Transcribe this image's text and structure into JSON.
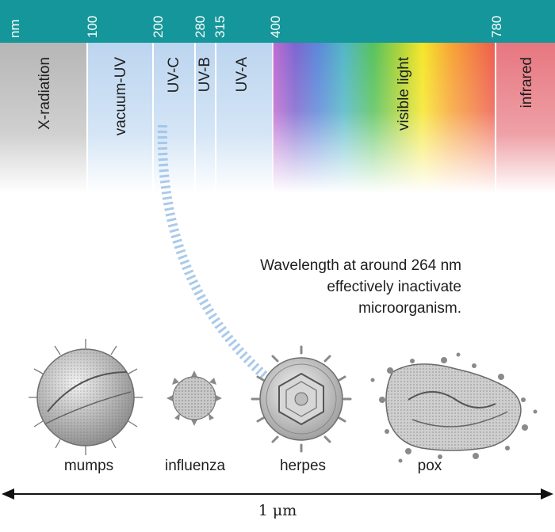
{
  "header": {
    "unit": "nm",
    "ticks": [
      "100",
      "200",
      "280",
      "315",
      "400",
      "780"
    ]
  },
  "bands": {
    "xray": "X-radiation",
    "vacuum_uv": "vacuum-UV",
    "uvc": "UV-C",
    "uvb": "UV-B",
    "uva": "UV-A",
    "visible": "visible light",
    "infrared": "infrared"
  },
  "caption": {
    "line1": "Wavelength at around 264 nm",
    "line2": "effectively inactivate",
    "line3": "microorganism."
  },
  "viruses": {
    "mumps": "mumps",
    "influenza": "influenza",
    "herpes": "herpes",
    "pox": "pox"
  },
  "scale": {
    "label": "1 μm"
  },
  "colors": {
    "header": "#14969a",
    "xray": "#bdbdbd",
    "uv": "#c6dcf2",
    "infrared": "#e87a82"
  }
}
